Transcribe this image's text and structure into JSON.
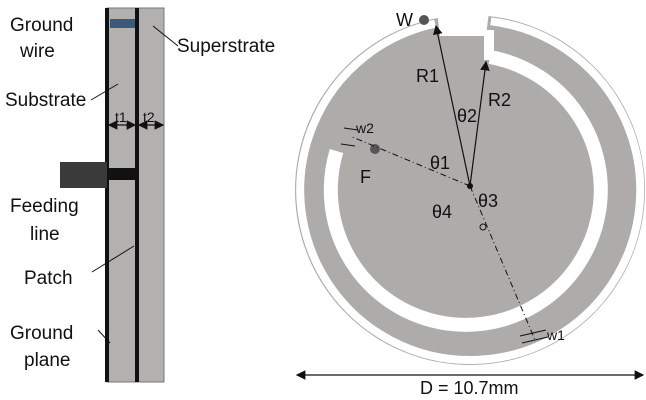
{
  "side_view": {
    "labels": {
      "ground_wire_line1": "Ground",
      "ground_wire_line2": "wire",
      "superstrate": "Superstrate",
      "substrate": "Substrate",
      "t1": "t1",
      "t2": "t2",
      "feeding_line_line1": "Feeding",
      "feeding_line_line2": "line",
      "patch": "Patch",
      "ground_plane_line1": "Ground",
      "ground_plane_line2": "plane"
    }
  },
  "top_view": {
    "labels": {
      "W": "W",
      "R1": "R1",
      "R2": "R2",
      "theta1": "θ1",
      "theta2": "θ2",
      "theta3": "θ3",
      "theta4": "θ4",
      "w1": "w1",
      "w2": "w2",
      "F": "F"
    },
    "dimension": "D = 10.7mm"
  },
  "colors": {
    "substrate": "#b3b1af",
    "dark": "#111111",
    "feed": "#3a3a3a",
    "ground_wire_marker": "#3a5a7c",
    "disk": "#aeacab",
    "slot": "#ffffff"
  }
}
